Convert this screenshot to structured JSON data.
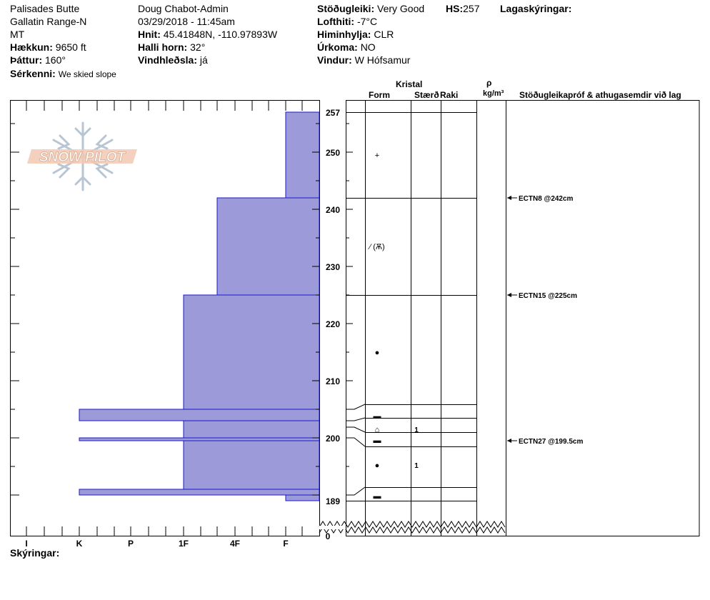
{
  "header": {
    "location": "Palisades Butte",
    "range": "Gallatin Range-N",
    "state": "MT",
    "elevation_label": "Hækkun:",
    "elevation": "9650 ft",
    "aspect_label": "Þáttur:",
    "aspect": "160°",
    "features_label": "Sérkenni:",
    "features": "We skied slope",
    "observer": "Doug Chabot-Admin",
    "datetime": "03/29/2018 - 11:45am",
    "coords_label": "Hnit:",
    "coords": "45.41848N, -110.97893W",
    "slope_label": "Halli horn:",
    "slope": "32°",
    "wind_loading_label": "Vindhleðsla:",
    "wind_loading": "já",
    "stability_label": "Stöðugleiki:",
    "stability": "Very Good",
    "hs_label": "HS:",
    "hs": "257",
    "air_temp_label": "Lofthiti:",
    "air_temp": "-7°C",
    "sky_label": "Himinhylja:",
    "sky": "CLR",
    "precip_label": "Úrkoma:",
    "precip": "NO",
    "wind_label": "Vindur:",
    "wind": "W Hófsamur",
    "layer_notes_label": "Lagaskýringar:"
  },
  "logo_text": "SNOW PILOT",
  "footer": {
    "notes_label": "Skýringar:"
  },
  "columns": {
    "crystal": "Kristal",
    "form": "Form",
    "size": "Stærð",
    "moisture": "Raki",
    "rho": "ρ",
    "density_unit": "kg/m³",
    "tests": "Stöðugleikapróf & athugasemdir við lag"
  },
  "colors": {
    "fill": "#9C9AD8",
    "edge": "#1A1ACC"
  },
  "chart_data": {
    "type": "snow-profile",
    "ylim": [
      189,
      257
    ],
    "y_ticks": [
      257,
      250,
      240,
      230,
      220,
      210,
      200,
      189
    ],
    "y_zero_label": "0",
    "x_ticks": [
      "I",
      "K",
      "P",
      "1F",
      "4F",
      "F"
    ],
    "hardness_layers": [
      {
        "top": 257,
        "bottom": 242,
        "hardness": "F"
      },
      {
        "top": 242,
        "bottom": 225,
        "hardness": "4F+"
      },
      {
        "top": 225,
        "bottom": 205,
        "hardness": "1F"
      },
      {
        "top": 205,
        "bottom": 203,
        "hardness": "K"
      },
      {
        "top": 203,
        "bottom": 200,
        "hardness": "1F"
      },
      {
        "top": 200,
        "bottom": 199.5,
        "hardness": "K"
      },
      {
        "top": 199.5,
        "bottom": 191,
        "hardness": "1F"
      },
      {
        "top": 191,
        "bottom": 190,
        "hardness": "K"
      },
      {
        "top": 190,
        "bottom": 189,
        "hardness": "F"
      }
    ],
    "layer_boundaries": [
      257,
      242,
      225,
      205,
      203,
      200,
      199.5,
      191,
      189
    ],
    "crystal_layers": [
      {
        "top": 257,
        "bottom": 242,
        "form": "+",
        "size": ""
      },
      {
        "top": 242,
        "bottom": 225,
        "form": "⁄ (Ѫ)",
        "size": ""
      },
      {
        "top": 225,
        "bottom": 205,
        "form": "●",
        "size": ""
      },
      {
        "top": 205,
        "bottom": 203,
        "form": "▬",
        "size": ""
      },
      {
        "top": 203,
        "bottom": 200,
        "form": "⌂",
        "size": "1"
      },
      {
        "top": 200,
        "bottom": 199.5,
        "form": "▬",
        "size": ""
      },
      {
        "top": 199.5,
        "bottom": 191,
        "form": "●",
        "size": "1"
      },
      {
        "top": 191,
        "bottom": 189,
        "form": "▬",
        "size": ""
      }
    ],
    "stability_tests": [
      {
        "depth": 242,
        "label": "ECTN8 @242cm"
      },
      {
        "depth": 225,
        "label": "ECTN15 @225cm"
      },
      {
        "depth": 199.5,
        "label": "ECTN27 @199.5cm"
      }
    ]
  }
}
